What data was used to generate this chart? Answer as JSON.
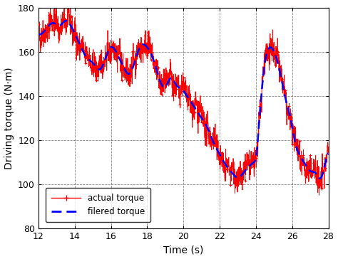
{
  "xlim": [
    12,
    28
  ],
  "ylim": [
    80,
    180
  ],
  "xticks": [
    12,
    14,
    16,
    18,
    20,
    22,
    24,
    26,
    28
  ],
  "yticks": [
    80,
    100,
    120,
    140,
    160,
    180
  ],
  "xlabel": "Time (s)",
  "ylabel": "Driving torque (N·m)",
  "grid_color": "#888888",
  "actual_color": "#ff0000",
  "filtered_color": "#0000ff",
  "legend_actual": "actual torque",
  "legend_filtered": "filered torque",
  "bg_color": "#ffffff",
  "figsize": [
    4.74,
    3.64
  ],
  "dpi": 100
}
